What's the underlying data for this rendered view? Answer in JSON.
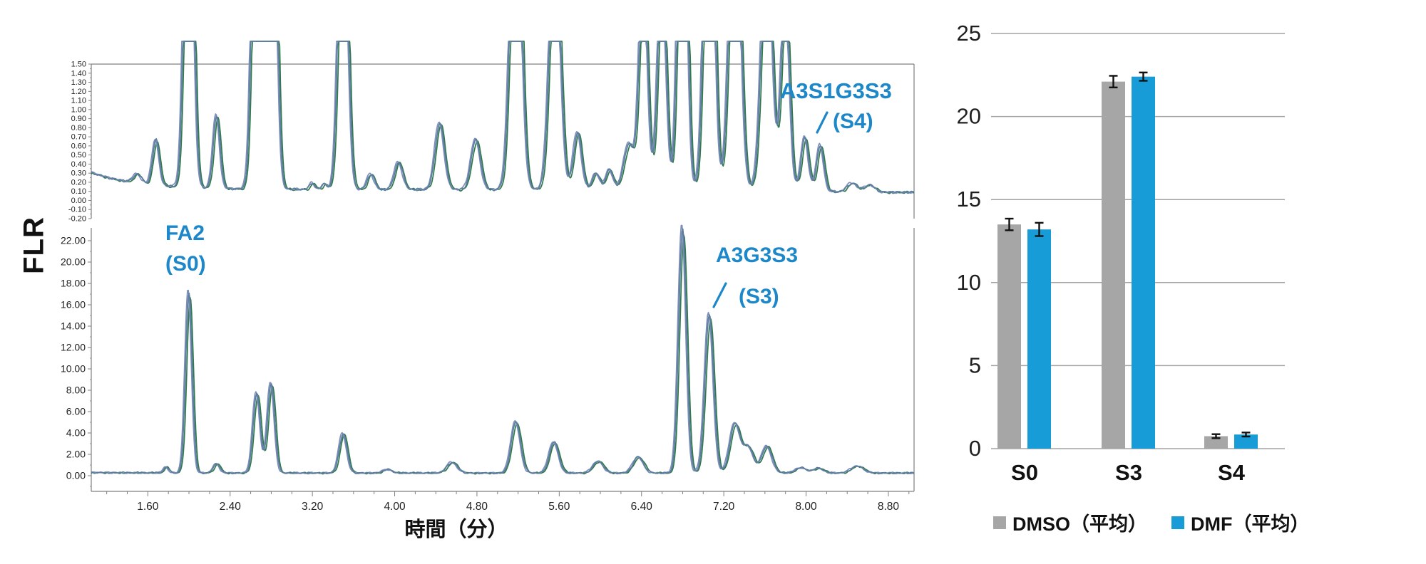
{
  "colors": {
    "annotation_blue": "#1c87c9",
    "bar_gray": "#a6a6a6",
    "bar_blue": "#189cd8",
    "grid_gray": "#a3a3a3",
    "axis_gray": "#808080",
    "tick_text": "#1f1f1f",
    "trace_colors": [
      "#2f7a4b",
      "#7e8fba",
      "#5c7d9f"
    ]
  },
  "chromatogram": {
    "ylabel": "FLR",
    "xlabel": "時間（分）",
    "x_tick_labels": [
      "1.60",
      "2.40",
      "3.20",
      "4.00",
      "4.80",
      "5.60",
      "6.40",
      "7.20",
      "8.00",
      "8.80"
    ],
    "annotations": [
      {
        "line1": "FA2",
        "line2": "(S0)",
        "target_peak": "S0"
      },
      {
        "line1": "A3G3S3",
        "line2": "(S3)",
        "target_peak": "S3",
        "pointer": [
          1001,
          431,
          1018,
          398
        ]
      },
      {
        "line1": "A3S1G3S3",
        "line2": "(S4)",
        "target_peak": "S4",
        "pointer": [
          1146,
          186,
          1160,
          158
        ]
      }
    ]
  },
  "chart_data": [
    {
      "type": "line",
      "title": "Fluorescence chromatogram, overlaid injections, zoomed and full scale",
      "xlabel": "時間（分）",
      "ylabel": "FLR",
      "x_ticks": [
        1.6,
        2.4,
        3.2,
        4.0,
        4.8,
        5.6,
        6.4,
        7.2,
        8.0,
        8.8
      ],
      "xlim": [
        1.05,
        9.05
      ],
      "grid": false,
      "panels": [
        {
          "name": "zoomed-trace",
          "ylim": [
            -0.2,
            1.5
          ],
          "y_tick_labels": [
            "1.50",
            "1.40",
            "1.30",
            "1.20",
            "1.10",
            "1.00",
            "0.90",
            "0.80",
            "0.70",
            "0.60",
            "0.50",
            "0.40",
            "0.30",
            "0.20",
            "0.10",
            "0.00",
            "-0.10",
            "-0.20"
          ],
          "baseline": {
            "start": 0.31,
            "settle": 0.12
          },
          "peaks": [
            [
              1.5,
              0.1,
              0.04
            ],
            [
              1.68,
              0.5,
              0.033
            ],
            [
              2.0,
              5.0,
              0.04
            ],
            [
              2.27,
              0.8,
              0.033
            ],
            [
              2.66,
              5.0,
              0.04
            ],
            [
              2.81,
              5.0,
              0.04
            ],
            [
              3.2,
              0.07,
              0.025
            ],
            [
              3.32,
              0.06,
              0.025
            ],
            [
              3.5,
              4.0,
              0.042
            ],
            [
              3.77,
              0.17,
              0.035
            ],
            [
              4.04,
              0.3,
              0.04
            ],
            [
              4.44,
              0.73,
              0.045
            ],
            [
              4.79,
              0.55,
              0.045
            ],
            [
              5.18,
              4.0,
              0.05
            ],
            [
              5.56,
              3.0,
              0.05
            ],
            [
              5.78,
              0.63,
              0.04
            ],
            [
              5.96,
              0.18,
              0.035
            ],
            [
              6.09,
              0.22,
              0.035
            ],
            [
              6.28,
              0.5,
              0.05
            ],
            [
              6.42,
              2.5,
              0.04
            ],
            [
              6.6,
              2.5,
              0.04
            ],
            [
              6.8,
              5.0,
              0.04
            ],
            [
              7.06,
              5.0,
              0.045
            ],
            [
              7.31,
              4.0,
              0.05
            ],
            [
              7.62,
              3.0,
              0.05
            ],
            [
              7.8,
              2.2,
              0.04
            ],
            [
              7.99,
              0.58,
              0.035
            ],
            [
              8.14,
              0.5,
              0.035
            ],
            [
              8.45,
              0.1,
              0.05
            ],
            [
              8.62,
              0.08,
              0.05
            ]
          ]
        },
        {
          "name": "full-scale-trace",
          "ylim": [
            0,
            22
          ],
          "y_tick_labels": [
            "22.00",
            "20.00",
            "18.00",
            "16.00",
            "14.00",
            "12.00",
            "10.00",
            "8.00",
            "6.00",
            "4.00",
            "2.00",
            "0.00"
          ],
          "baseline": {
            "start": 0.3,
            "settle": 0.25
          },
          "peaks": [
            [
              1.78,
              0.55,
              0.025
            ],
            [
              2.0,
              16.9,
              0.032
            ],
            [
              2.27,
              0.85,
              0.032
            ],
            [
              2.66,
              7.5,
              0.035
            ],
            [
              2.8,
              8.4,
              0.035
            ],
            [
              3.5,
              3.7,
              0.038
            ],
            [
              3.93,
              0.35,
              0.04
            ],
            [
              4.56,
              1.0,
              0.05
            ],
            [
              5.18,
              4.8,
              0.045
            ],
            [
              5.55,
              2.9,
              0.045
            ],
            [
              5.98,
              1.1,
              0.05
            ],
            [
              6.37,
              1.5,
              0.05
            ],
            [
              6.8,
              22.9,
              0.038
            ],
            [
              7.06,
              14.8,
              0.042
            ],
            [
              7.31,
              4.6,
              0.05
            ],
            [
              7.44,
              2.4,
              0.05
            ],
            [
              7.62,
              2.5,
              0.05
            ],
            [
              7.95,
              0.5,
              0.05
            ],
            [
              8.12,
              0.45,
              0.05
            ],
            [
              8.5,
              0.65,
              0.06
            ]
          ]
        }
      ],
      "annotated_peaks": [
        {
          "label": "FA2 (S0)",
          "time": 2.0,
          "height": 16.9
        },
        {
          "label": "A3G3S3 (S3)",
          "time": 7.06,
          "height": 14.8
        },
        {
          "label": "A3S1G3S3 (S4)",
          "time": 8.05,
          "height": 0.55
        }
      ]
    },
    {
      "type": "bar",
      "categories": [
        "S0",
        "S3",
        "S4"
      ],
      "series": [
        {
          "name": "DMSO（平均）",
          "color": "#a6a6a6",
          "values": [
            13.5,
            22.1,
            0.75
          ],
          "errors": [
            0.35,
            0.35,
            0.12
          ]
        },
        {
          "name": "DMF（平均）",
          "color": "#189cd8",
          "values": [
            13.2,
            22.4,
            0.85
          ],
          "errors": [
            0.4,
            0.25,
            0.12
          ]
        }
      ],
      "title": "",
      "xlabel": "",
      "ylabel": "",
      "ylim": [
        0,
        25
      ],
      "yticks": [
        0,
        5,
        10,
        15,
        20,
        25
      ],
      "grid": true,
      "legend_position": "bottom"
    }
  ]
}
